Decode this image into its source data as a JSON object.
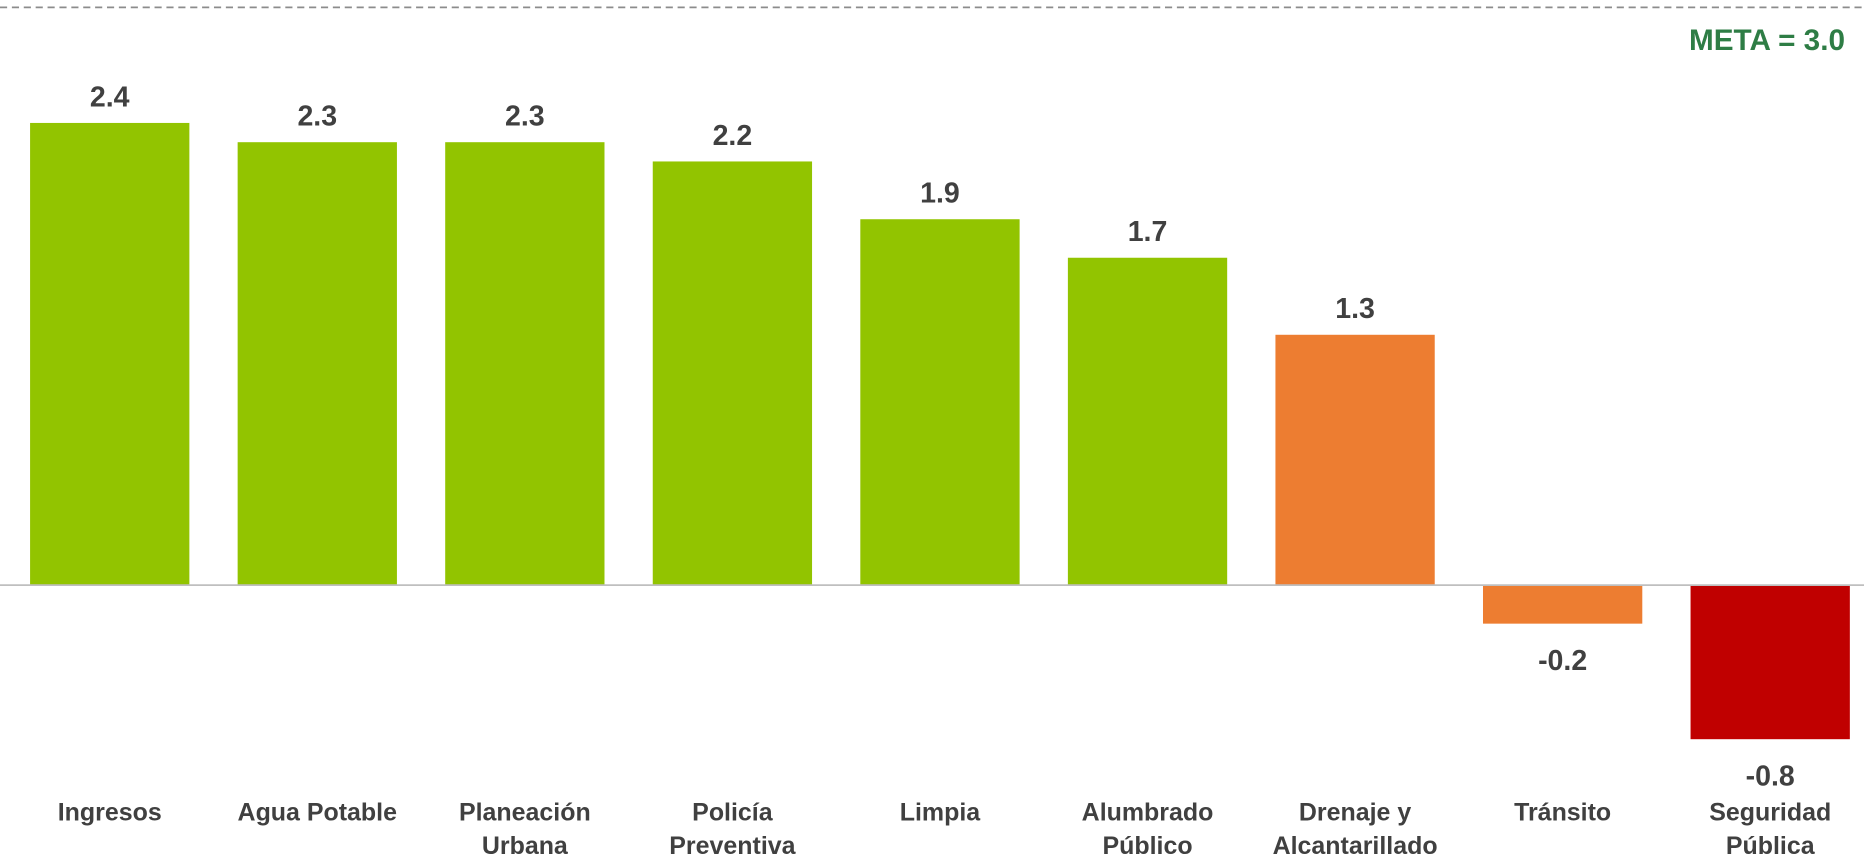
{
  "chart_data": {
    "type": "bar",
    "categories": [
      "Ingresos",
      "Agua Potable",
      "Planeación\nUrbana",
      "Policía\nPreventiva",
      "Limpia",
      "Alumbrado\nPúblico",
      "Drenaje y\nAlcantarillado",
      "Tránsito",
      "Seguridad\nPública"
    ],
    "values": [
      2.4,
      2.3,
      2.3,
      2.2,
      1.9,
      1.7,
      1.3,
      -0.2,
      -0.8
    ],
    "colors": [
      "#92c400",
      "#92c400",
      "#92c400",
      "#92c400",
      "#92c400",
      "#92c400",
      "#ed7d31",
      "#ed7d31",
      "#c00000"
    ],
    "ylim": [
      -1,
      3.0
    ],
    "target": {
      "value": 3.0,
      "label": "META = 3.0",
      "color": "#2e7d45"
    }
  }
}
